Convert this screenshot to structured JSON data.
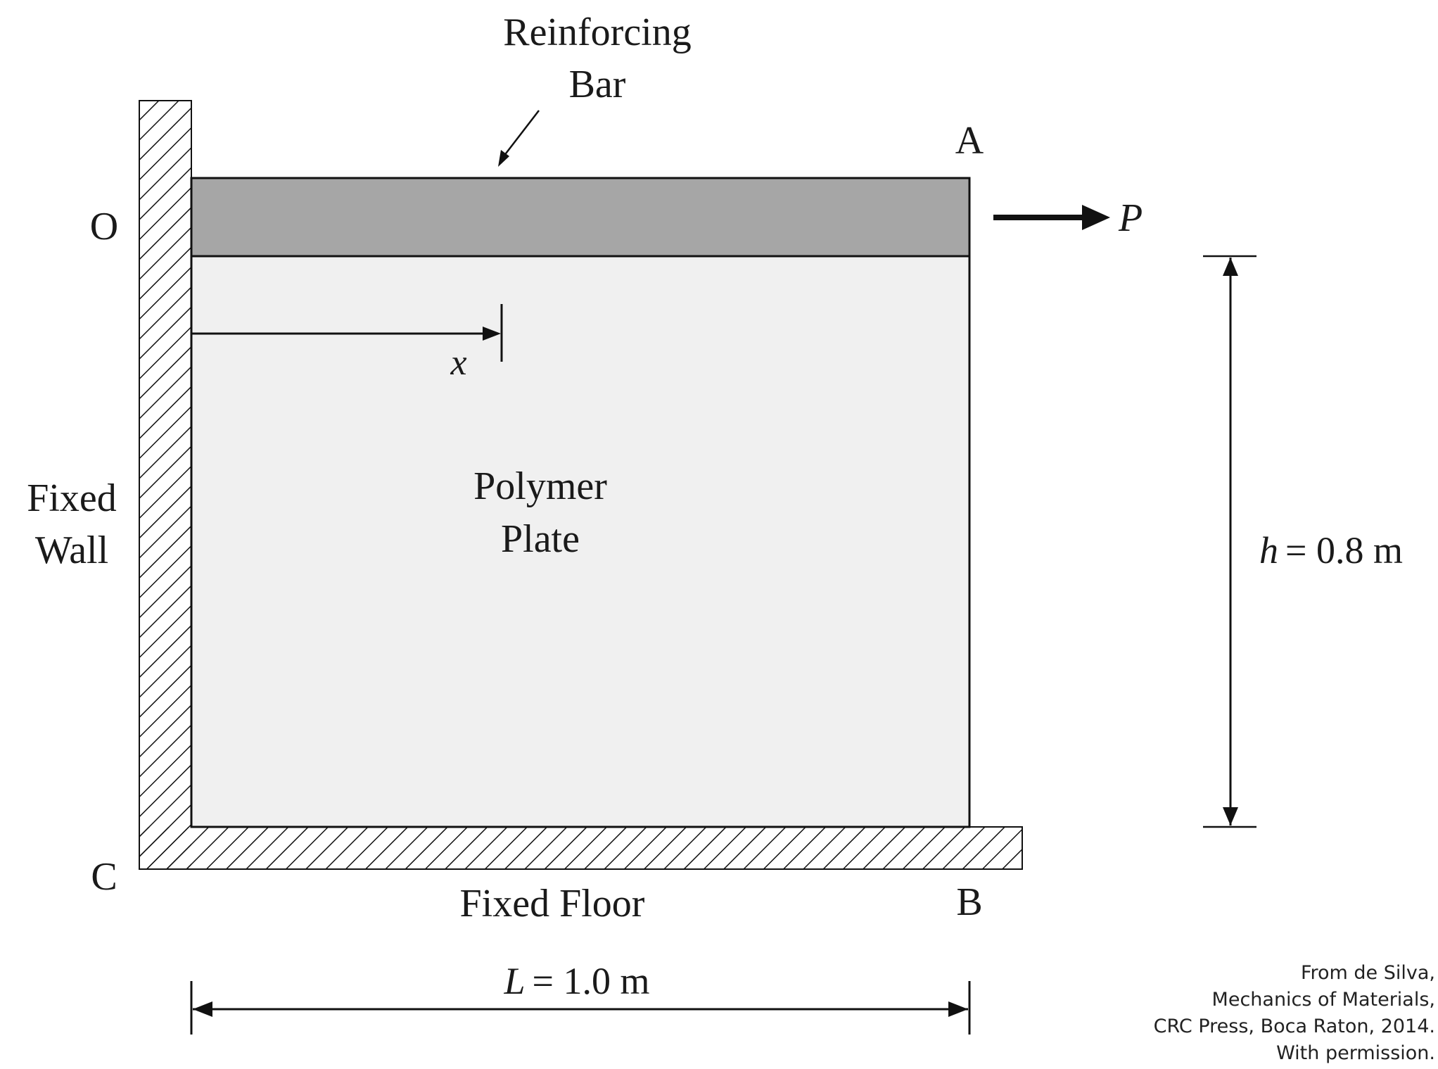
{
  "labels": {
    "reinforcing_bar_line1": "Reinforcing",
    "reinforcing_bar_line2": "Bar",
    "point_a": "A",
    "point_o": "O",
    "point_c": "C",
    "point_b": "B",
    "force": "P",
    "x_dimension": "x",
    "plate_line1": "Polymer",
    "plate_line2": "Plate",
    "wall_line1": "Fixed",
    "wall_line2": "Wall",
    "floor": "Fixed Floor",
    "height_symbol": "h",
    "height_value": "= 0.8 m",
    "length_symbol": "L",
    "length_value": "= 1.0 m"
  },
  "credit": {
    "line1": "From de Silva,",
    "line2": "Mechanics of Materials,",
    "line3": "CRC Press, Boca Raton, 2014.",
    "line4": "With permission."
  },
  "colors": {
    "plate_fill": "#f0f0f0",
    "bar_fill": "#a6a6a6",
    "line": "#111111"
  }
}
